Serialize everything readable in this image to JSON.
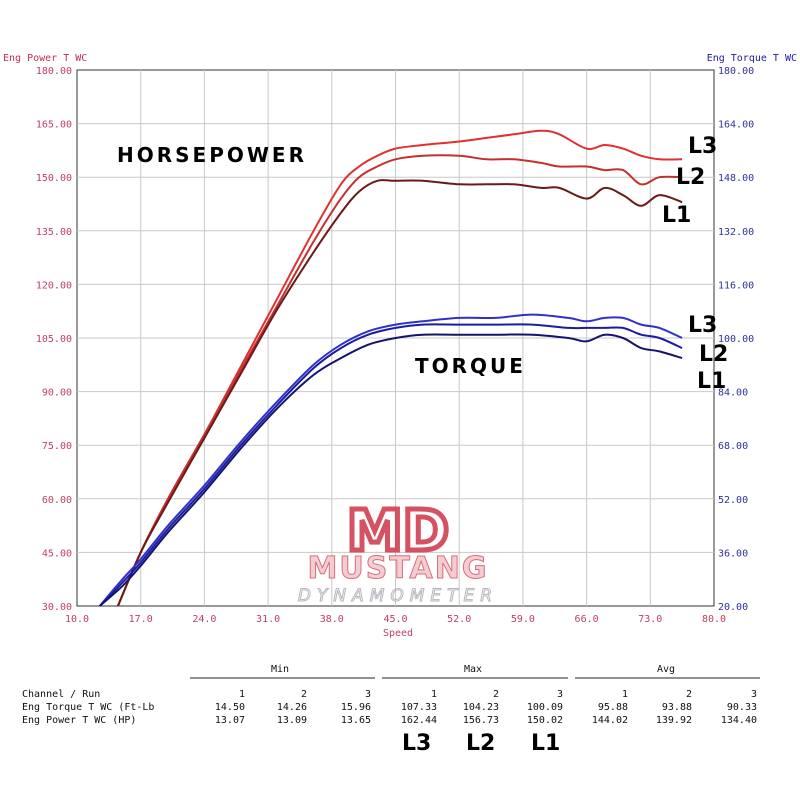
{
  "chart_data": {
    "type": "line",
    "left_axis_title": "Eng Power T WC",
    "right_axis_title": "Eng Torque T WC",
    "xlabel": "Speed",
    "xlim": [
      10,
      80
    ],
    "x_ticks": [
      "10.0",
      "17.0",
      "24.0",
      "31.0",
      "38.0",
      "45.0",
      "52.0",
      "59.0",
      "66.0",
      "73.0",
      "80.0"
    ],
    "ylim_left": [
      30,
      180
    ],
    "y_ticks_left": [
      "30.00",
      "45.00",
      "60.00",
      "75.00",
      "90.00",
      "105.00",
      "120.00",
      "135.00",
      "150.00",
      "165.00",
      "180.00"
    ],
    "ylim_right": [
      20,
      180
    ],
    "y_ticks_right": [
      "20.00",
      "36.00",
      "52.00",
      "68.00",
      "84.00",
      "100.00",
      "116.00",
      "132.00",
      "148.00",
      "164.00",
      "180.00"
    ],
    "grid": true,
    "colors": {
      "hp": [
        "#6b1a1a",
        "#c43030",
        "#e03030"
      ],
      "tq": [
        "#14146e",
        "#1c1ca0",
        "#3030cc"
      ]
    },
    "annotations": {
      "horsepower": "HORSEPOWER",
      "torque": "TORQUE"
    },
    "run_labels": {
      "hp": [
        "L1",
        "L2",
        "L3"
      ],
      "tq": [
        "L1",
        "L2",
        "L3"
      ]
    },
    "series": [
      {
        "name": "L3",
        "group": "hp",
        "axis": "left",
        "x": [
          14.5,
          17,
          20,
          24,
          28,
          32,
          36,
          39,
          41,
          43,
          45,
          48,
          52,
          55,
          58,
          61,
          63,
          66,
          68,
          70,
          72,
          74,
          76.5
        ],
        "y": [
          30,
          45,
          60,
          78,
          97,
          116,
          135,
          148,
          153,
          156,
          158,
          159,
          160,
          161,
          162,
          163,
          162,
          158,
          159,
          158,
          156,
          155,
          155
        ]
      },
      {
        "name": "L2",
        "group": "hp",
        "axis": "left",
        "x": [
          14.5,
          17,
          20,
          24,
          28,
          32,
          36,
          39,
          41,
          43,
          45,
          48,
          52,
          55,
          58,
          61,
          63,
          66,
          68,
          70,
          72,
          74,
          76.5
        ],
        "y": [
          30,
          45,
          60,
          78,
          96,
          114,
          132,
          144,
          150,
          153,
          155,
          156,
          156,
          155,
          155,
          154,
          153,
          153,
          152,
          152,
          148,
          150,
          150
        ]
      },
      {
        "name": "L1",
        "group": "hp",
        "axis": "left",
        "x": [
          14.5,
          17,
          20,
          24,
          28,
          32,
          36,
          39,
          41,
          43,
          45,
          48,
          52,
          55,
          58,
          61,
          63,
          66,
          68,
          70,
          72,
          74,
          76.5
        ],
        "y": [
          30,
          45,
          59,
          77,
          95,
          113,
          129,
          140,
          146,
          149,
          149,
          149,
          148,
          148,
          148,
          147,
          147,
          144,
          147,
          145,
          142,
          145,
          143
        ]
      },
      {
        "name": "L3",
        "group": "tq",
        "axis": "right",
        "x": [
          12.5,
          15,
          17,
          20,
          24,
          28,
          32,
          36,
          39,
          42,
          45,
          48,
          52,
          56,
          60,
          64,
          66,
          68,
          70,
          72,
          74,
          76.5
        ],
        "y": [
          20,
          28,
          34,
          44,
          56,
          69,
          81,
          92,
          98,
          102,
          104,
          105,
          106,
          106,
          107,
          106,
          105,
          106,
          106,
          104,
          103,
          100
        ]
      },
      {
        "name": "L2",
        "group": "tq",
        "axis": "right",
        "x": [
          12.5,
          15,
          17,
          20,
          24,
          28,
          32,
          36,
          39,
          42,
          45,
          48,
          52,
          56,
          60,
          64,
          66,
          68,
          70,
          72,
          74,
          76.5
        ],
        "y": [
          20,
          27,
          33,
          43,
          55,
          68,
          80,
          91,
          97,
          101,
          103,
          104,
          104,
          104,
          104,
          103,
          103,
          103,
          103,
          101,
          100,
          97
        ]
      },
      {
        "name": "L1",
        "group": "tq",
        "axis": "right",
        "x": [
          12.5,
          15,
          17,
          20,
          24,
          28,
          32,
          36,
          39,
          42,
          45,
          48,
          52,
          56,
          60,
          64,
          66,
          68,
          70,
          72,
          74,
          76.5
        ],
        "y": [
          20,
          26,
          32,
          42,
          54,
          67,
          79,
          89,
          94,
          98,
          100,
          101,
          101,
          101,
          101,
          100,
          99,
          101,
          100,
          97,
          96,
          94
        ]
      }
    ]
  },
  "logo": {
    "mark": "MD",
    "name": "MUSTANG",
    "sub": "DYNAMOMETER"
  },
  "table": {
    "group_headers": [
      "Min",
      "Max",
      "Avg"
    ],
    "header_row_label": "Channel / Run",
    "run_numbers": [
      "1",
      "2",
      "3",
      "1",
      "2",
      "3",
      "1",
      "2",
      "3"
    ],
    "rows": [
      {
        "label": "Eng Torque T WC (Ft-Lb",
        "values": [
          "14.50",
          "14.26",
          "15.96",
          "107.33",
          "104.23",
          "100.09",
          "95.88",
          "93.88",
          "90.33"
        ]
      },
      {
        "label": "Eng Power T WC (HP)",
        "values": [
          "13.07",
          "13.09",
          "13.65",
          "162.44",
          "156.73",
          "150.02",
          "144.02",
          "139.92",
          "134.40"
        ]
      }
    ],
    "max_run_labels": [
      "L3",
      "L2",
      "L1"
    ]
  }
}
